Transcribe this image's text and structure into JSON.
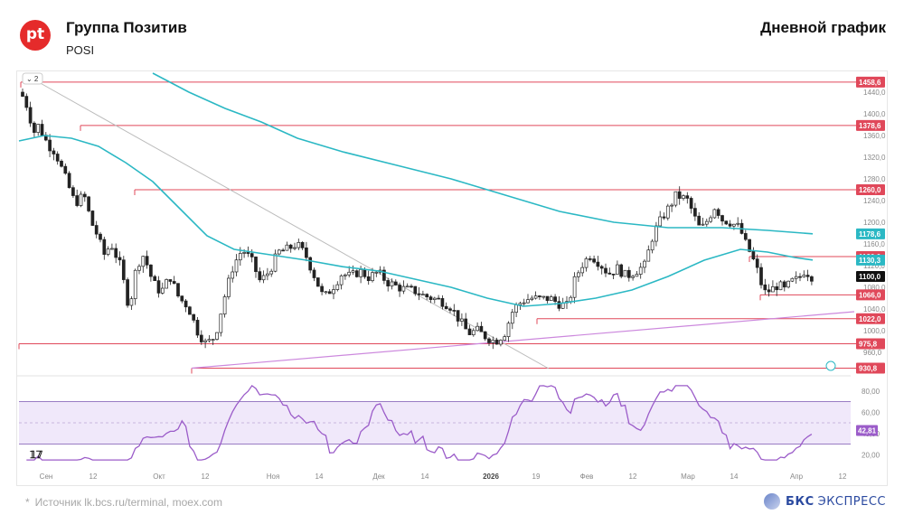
{
  "header": {
    "logo_text": "pt",
    "company": "Группа Позитив",
    "ticker": "POSI",
    "period": "Дневной график"
  },
  "footer": {
    "star": "*",
    "source": "Источник lk.bcs.ru/terminal, moex.com",
    "brand_bold": "БКС",
    "brand_rest": "ЭКСПРЕСС"
  },
  "colors": {
    "candle_up": "#222222",
    "candle_down_body": "#222222",
    "ma": "#2bb8c4",
    "level": "#e0485a",
    "trend_up": "#cc88dd",
    "trend_down": "#bbbbbb",
    "rsi": "#9b5cc9",
    "rsi_band": "#f0e8fa",
    "last_price": "#111111"
  },
  "chart_data": {
    "type": "candlestick",
    "price_axis": {
      "ylim": [
        925,
        1475
      ],
      "ticks": [
        "1440,0",
        "1400,0",
        "1360,0",
        "1320,0",
        "1280,0",
        "1240,0",
        "1200,0",
        "1160,0",
        "1120,0",
        "1080,0",
        "1040,0",
        "1000,0",
        "960,0"
      ]
    },
    "x_labels": [
      "Сен",
      "12",
      "Окт",
      "12",
      "Ноя",
      "14",
      "Дек",
      "14",
      "2026",
      "19",
      "Фев",
      "12",
      "Мар",
      "14",
      "Апр",
      "12"
    ],
    "levels": [
      {
        "label": "1458,6",
        "value": 1458.6
      },
      {
        "label": "1378,6",
        "value": 1378.6
      },
      {
        "label": "1260,0",
        "value": 1260.0
      },
      {
        "label": "1136,6",
        "value": 1136.6
      },
      {
        "label": "1066,0",
        "value": 1066.0
      },
      {
        "label": "1022,0",
        "value": 1022.0
      },
      {
        "label": "975,8",
        "value": 975.8
      },
      {
        "label": "930,8",
        "value": 930.8
      }
    ],
    "ma_labels": [
      {
        "label": "1178,6",
        "value": 1178.6
      },
      {
        "label": "1130,3",
        "value": 1130.3
      }
    ],
    "last_price": {
      "label": "1100,0",
      "value": 1100.0
    },
    "indicator_toggle": "2",
    "trendlines": [
      {
        "name": "support",
        "from": [
          "Окт 12",
          930.8
        ],
        "to": [
          "Апр 15",
          1035
        ]
      },
      {
        "name": "resistance",
        "from": [
          "Сен 01",
          1460
        ],
        "to": [
          "Янв 20",
          930
        ]
      }
    ],
    "rsi": {
      "ylim": [
        10,
        90
      ],
      "ticks": [
        "80,00",
        "60,00",
        "40,00",
        "20,00"
      ],
      "upper": 70,
      "lower": 30,
      "mid": 50,
      "last_label": "42,81",
      "last": 42.81
    }
  }
}
